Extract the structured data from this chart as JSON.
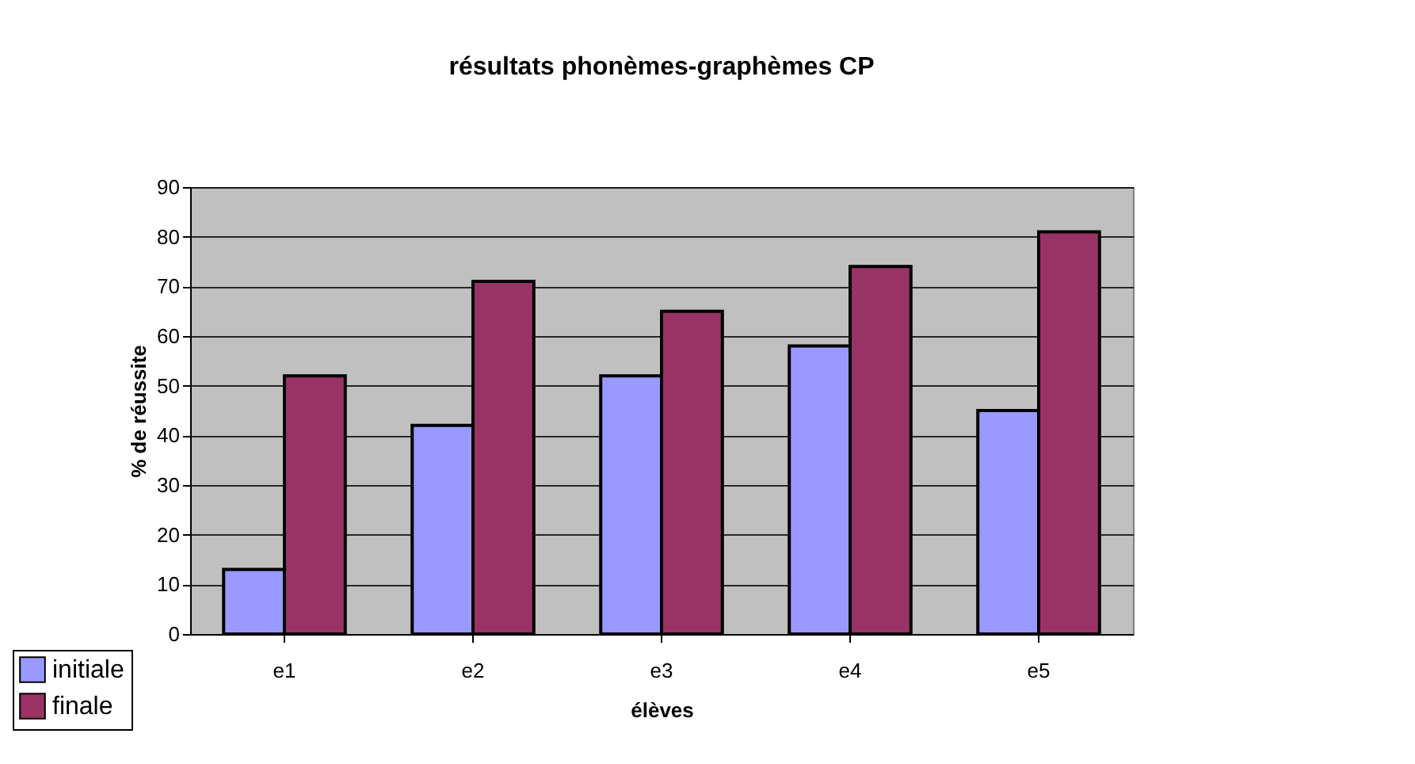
{
  "chart_data": {
    "type": "bar",
    "title": "résultats phonèmes-graphèmes CP",
    "xlabel": "élèves",
    "ylabel": "% de réussite",
    "categories": [
      "e1",
      "e2",
      "e3",
      "e4",
      "e5"
    ],
    "series": [
      {
        "name": "initiale",
        "color": "#9999ff",
        "values": [
          13,
          42,
          52,
          58,
          45
        ]
      },
      {
        "name": "finale",
        "color": "#993366",
        "values": [
          52,
          71,
          65,
          74,
          81
        ]
      }
    ],
    "ylim": [
      0,
      90
    ],
    "yticks": [
      0,
      10,
      20,
      30,
      40,
      50,
      60,
      70,
      80,
      90
    ],
    "grid": "y",
    "legend": "bottom left"
  }
}
